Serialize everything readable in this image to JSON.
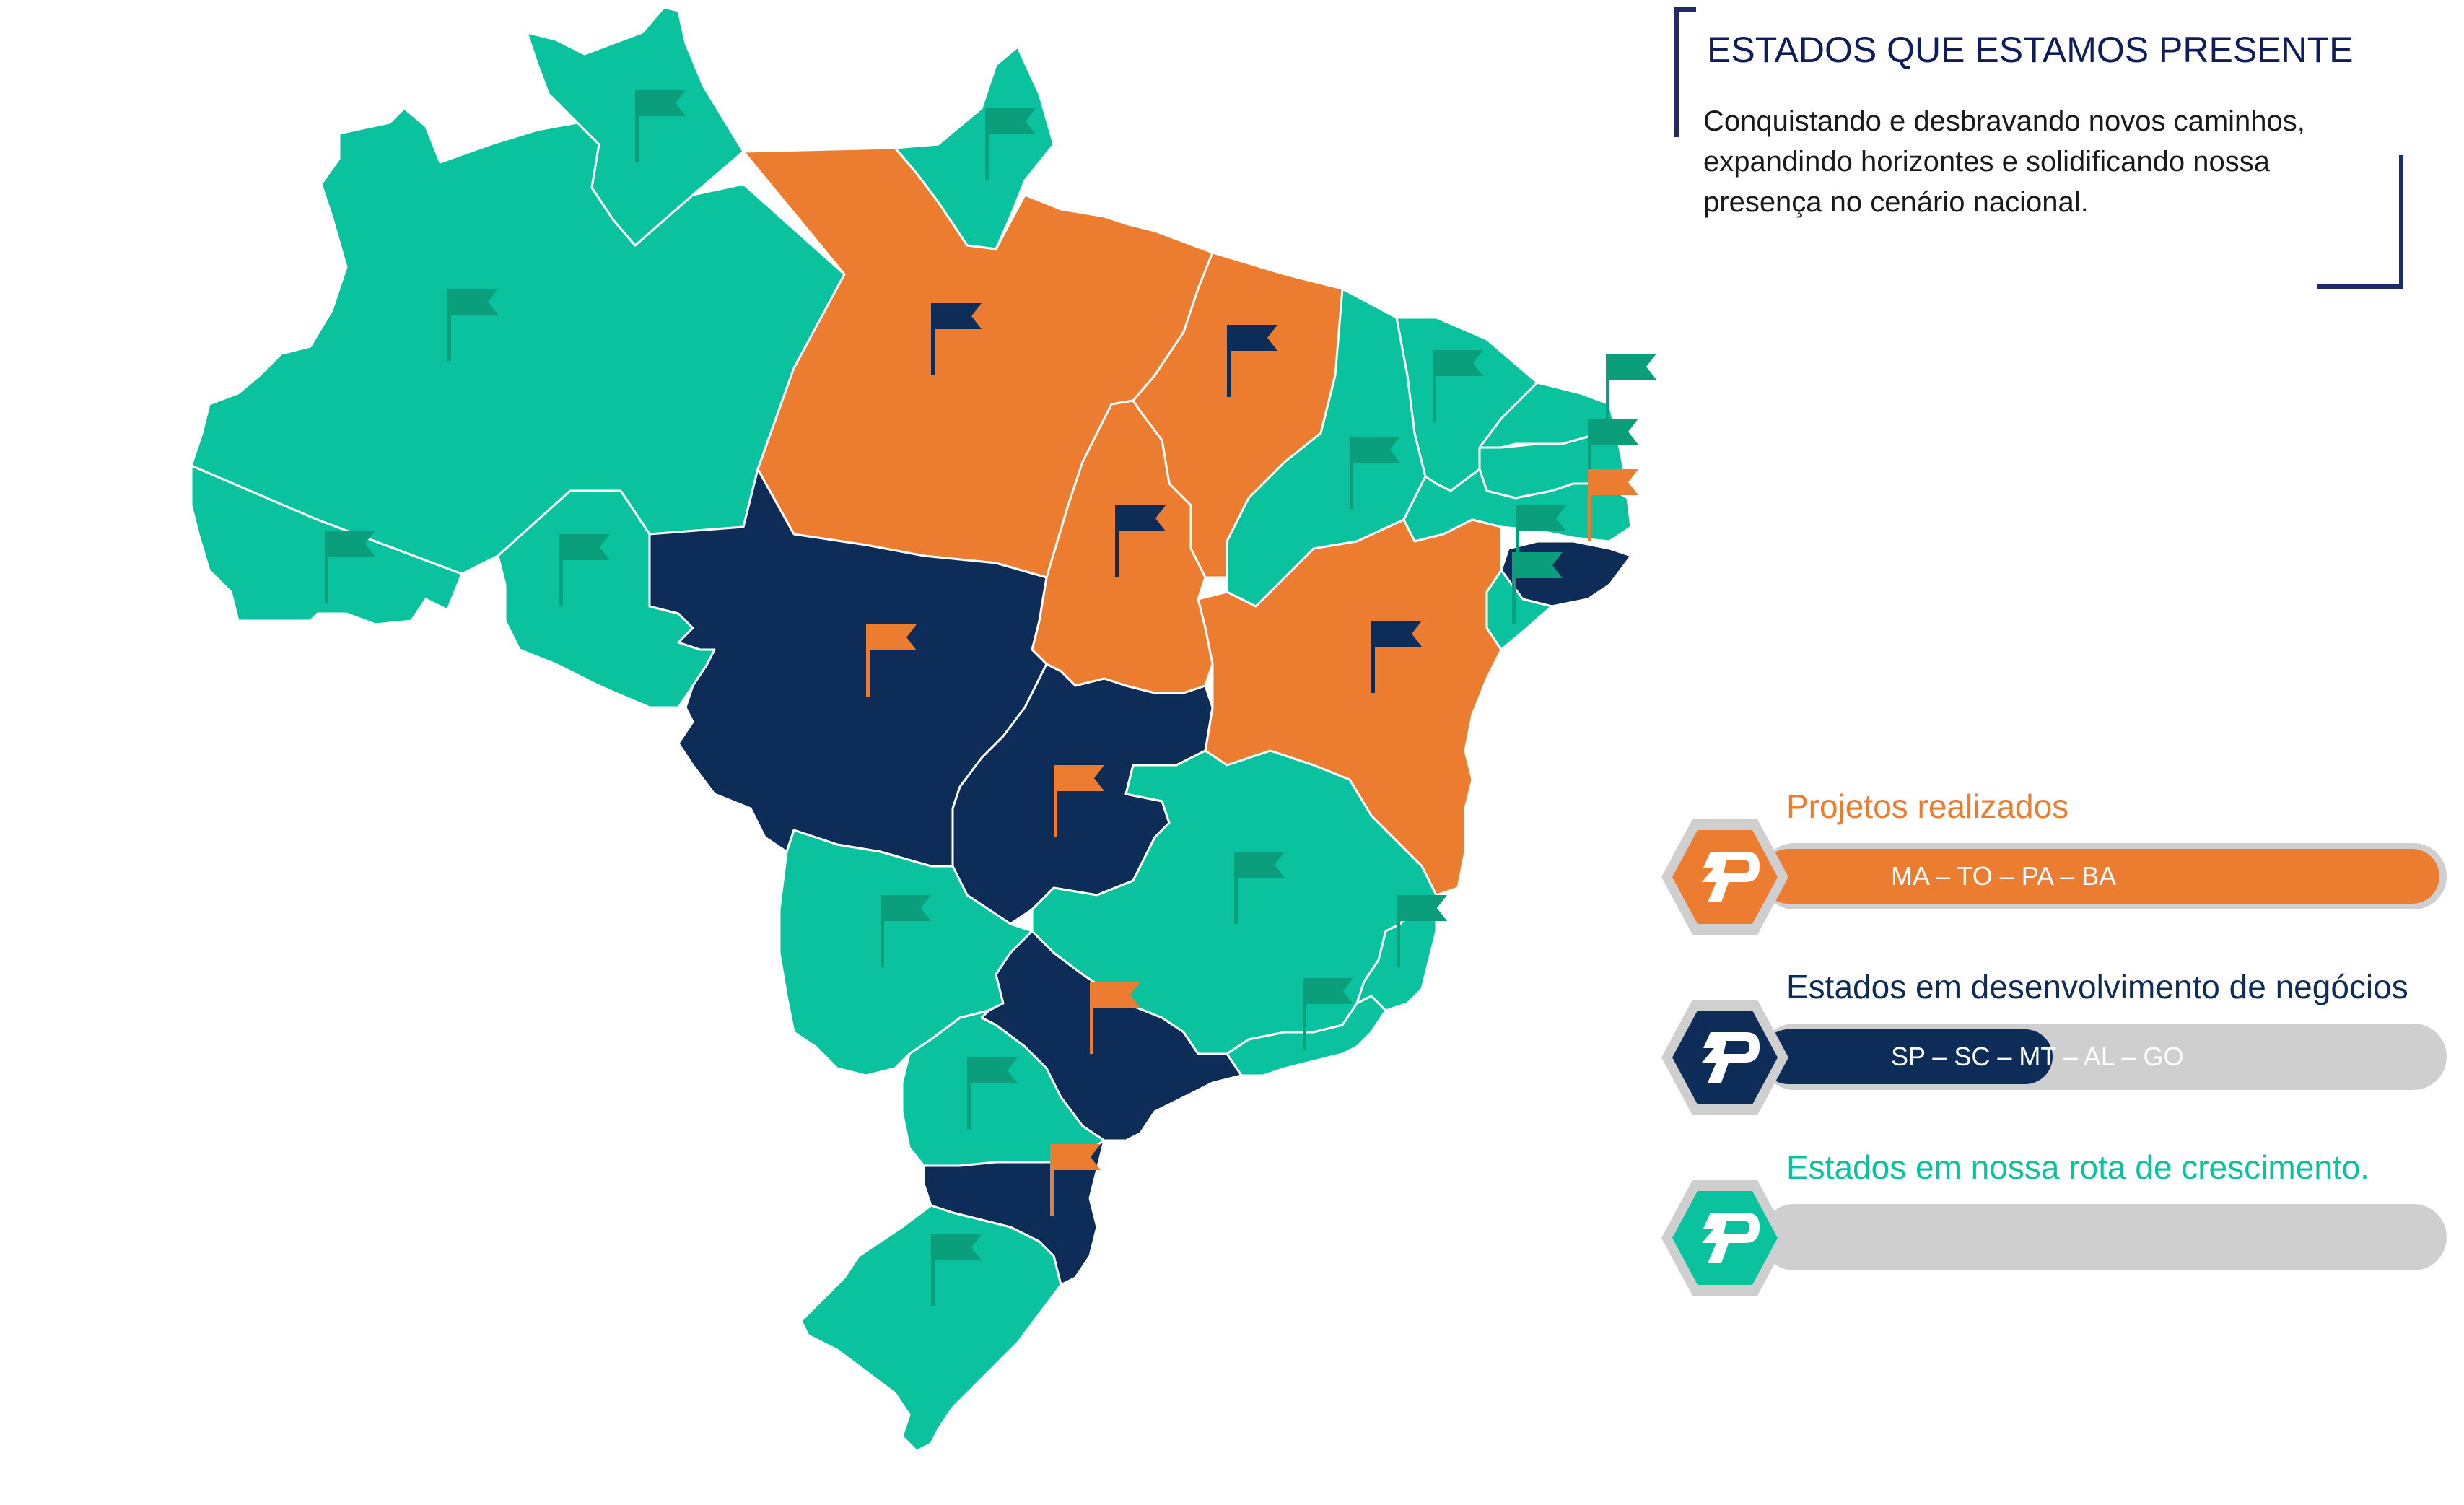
{
  "header": {
    "title": "ESTADOS QUE ESTAMOS PRESENTE",
    "subtitle": "Conquistando e desbravando novos caminhos, expandindo horizontes e solidificando nossa presença no cenário nacional."
  },
  "colors": {
    "orange": "#ec7c30",
    "navy": "#0d2c57",
    "teal": "#0ac39e",
    "flag_teal": "#0a9e7a",
    "gray": "#cfcfcf",
    "frame": "#1f2a6b"
  },
  "legend": [
    {
      "label": "Projetos realizados",
      "states": "MA – TO – PA – BA",
      "color": "#ec7c30",
      "fill": 1.0,
      "icon": "lightning-p-icon"
    },
    {
      "label": "Estados em desenvolvimento de negócios",
      "states": "SP – SC – MT – AL – GO",
      "color": "#0d2c57",
      "fill": 0.3,
      "icon": "lightning-p-icon"
    },
    {
      "label": "Estados em nossa rota de crescimento.",
      "states": "",
      "color": "#0ac39e",
      "fill": 0.0,
      "icon": "lightning-p-icon"
    }
  ],
  "map": {
    "region_category": {
      "AC": "growth",
      "AM": "growth",
      "RR": "growth",
      "AP": "growth",
      "RO": "growth",
      "PA": "done",
      "MA": "done",
      "TO": "done",
      "BA": "done",
      "MT": "dev",
      "GO": "dev",
      "SP": "dev",
      "SC": "dev",
      "AL": "dev",
      "PI": "growth",
      "CE": "growth",
      "RN": "growth",
      "PB": "growth",
      "PE": "growth",
      "SE": "growth",
      "MS": "growth",
      "MG": "growth",
      "ES": "growth",
      "RJ": "growth",
      "PR": "growth",
      "RS": "growth"
    }
  }
}
